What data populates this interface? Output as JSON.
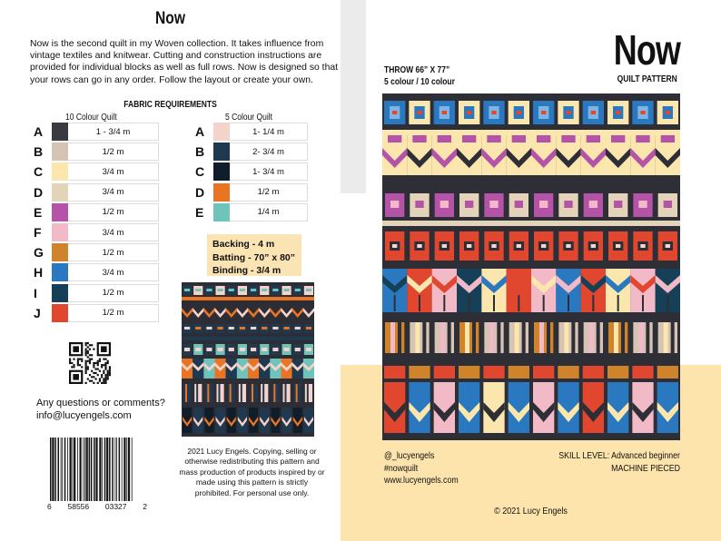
{
  "left": {
    "title": "Now",
    "intro": "Now is the second quilt in my Woven collection.  It takes influence from vintage textiles and knitwear.  Cutting and construction instructions are provided for individual blocks as well as full rows.  Now is designed so that your rows can go in any order.  Follow the layout or create your own.",
    "fabric_heading": "FABRIC REQUIREMENTS",
    "ten_colour": {
      "heading": "10 Colour Quilt",
      "rows": [
        {
          "letter": "A",
          "amount": "1 - 3/4 m",
          "color": "#3a3a40"
        },
        {
          "letter": "B",
          "amount": "1/2 m",
          "color": "#d5c3b3"
        },
        {
          "letter": "C",
          "amount": "3/4 m",
          "color": "#fbe6ad"
        },
        {
          "letter": "D",
          "amount": "3/4 m",
          "color": "#e3d3b9"
        },
        {
          "letter": "E",
          "amount": "1/2 m",
          "color": "#b453a7"
        },
        {
          "letter": "F",
          "amount": "3/4 m",
          "color": "#f2b9c7"
        },
        {
          "letter": "G",
          "amount": "1/2 m",
          "color": "#cf842c"
        },
        {
          "letter": "H",
          "amount": "3/4 m",
          "color": "#2a78c0"
        },
        {
          "letter": "I",
          "amount": "1/2 m",
          "color": "#163f58"
        },
        {
          "letter": "J",
          "amount": "1/2 m",
          "color": "#e1472e"
        }
      ]
    },
    "five_colour": {
      "heading": "5 Colour Quilt",
      "rows": [
        {
          "letter": "A",
          "amount": "1- 1/4 m",
          "color": "#f4d3cb"
        },
        {
          "letter": "B",
          "amount": "2- 3/4 m",
          "color": "#1f3a50"
        },
        {
          "letter": "C",
          "amount": "1- 3/4 m",
          "color": "#0f1e2a"
        },
        {
          "letter": "D",
          "amount": "1/2 m",
          "color": "#e87424"
        },
        {
          "letter": "E",
          "amount": "1/4 m",
          "color": "#6ec4bb"
        }
      ]
    },
    "supplies": {
      "backing": "Backing -  4 m",
      "batting": "Batting -  70” x 80”",
      "binding": "Binding -  3/4 m"
    },
    "questions": "Any questions or comments?",
    "email": "info@lucyengels.com",
    "barcode_digits": [
      "6",
      "58556",
      "03327",
      "2"
    ],
    "copyright": "2021 Lucy Engels.  Copying, selling or otherwise redistributing this pattern and mass production of products inspired by or made using this pattern is strictly prohibited. For personal use only."
  },
  "right": {
    "title": "Now",
    "subtitle": "QUILT PATTERN",
    "throw_size": "THROW 66” X 77”",
    "colour_options": "5 colour / 10 colour",
    "instagram": "@_lucyengels",
    "hashtag": "#nowquilt",
    "website": "www.lucyengels.com",
    "skill_level": "SKILL LEVEL: Advanced beginner",
    "method": "MACHINE PIECED",
    "copyright": "© 2021 Lucy Engels"
  }
}
